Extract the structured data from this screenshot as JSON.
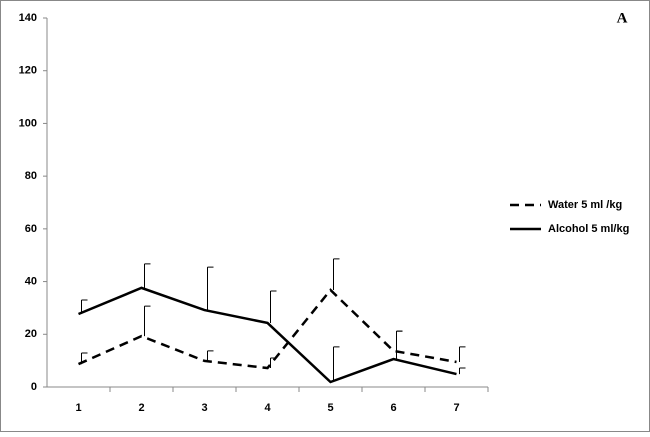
{
  "chart_data": {
    "type": "line",
    "annotation": "A",
    "categories": [
      "1",
      "2",
      "3",
      "4",
      "5",
      "6",
      "7"
    ],
    "series": [
      {
        "name": "Water 5 ml /kg",
        "color": "#000000",
        "line_style": "dashed",
        "values": [
          8.7,
          19.3,
          9.9,
          7.2,
          36.8,
          13.7,
          9.5
        ],
        "errors": [
          4.2,
          11.4,
          3.8,
          3.8,
          11.8,
          7.5,
          5.7
        ]
      },
      {
        "name": "Alcohol 5 ml/kg",
        "color": "#000000",
        "line_style": "solid",
        "values": [
          27.7,
          37.6,
          29.2,
          24.3,
          1.9,
          10.6,
          4.9
        ],
        "errors": [
          5.3,
          9.1,
          16.3,
          12.1,
          13.3,
          10.6,
          2.3
        ]
      }
    ],
    "ylim": [
      0,
      140
    ],
    "yticks": [
      0,
      20,
      40,
      60,
      80,
      100,
      120,
      140
    ],
    "legend": "right"
  }
}
